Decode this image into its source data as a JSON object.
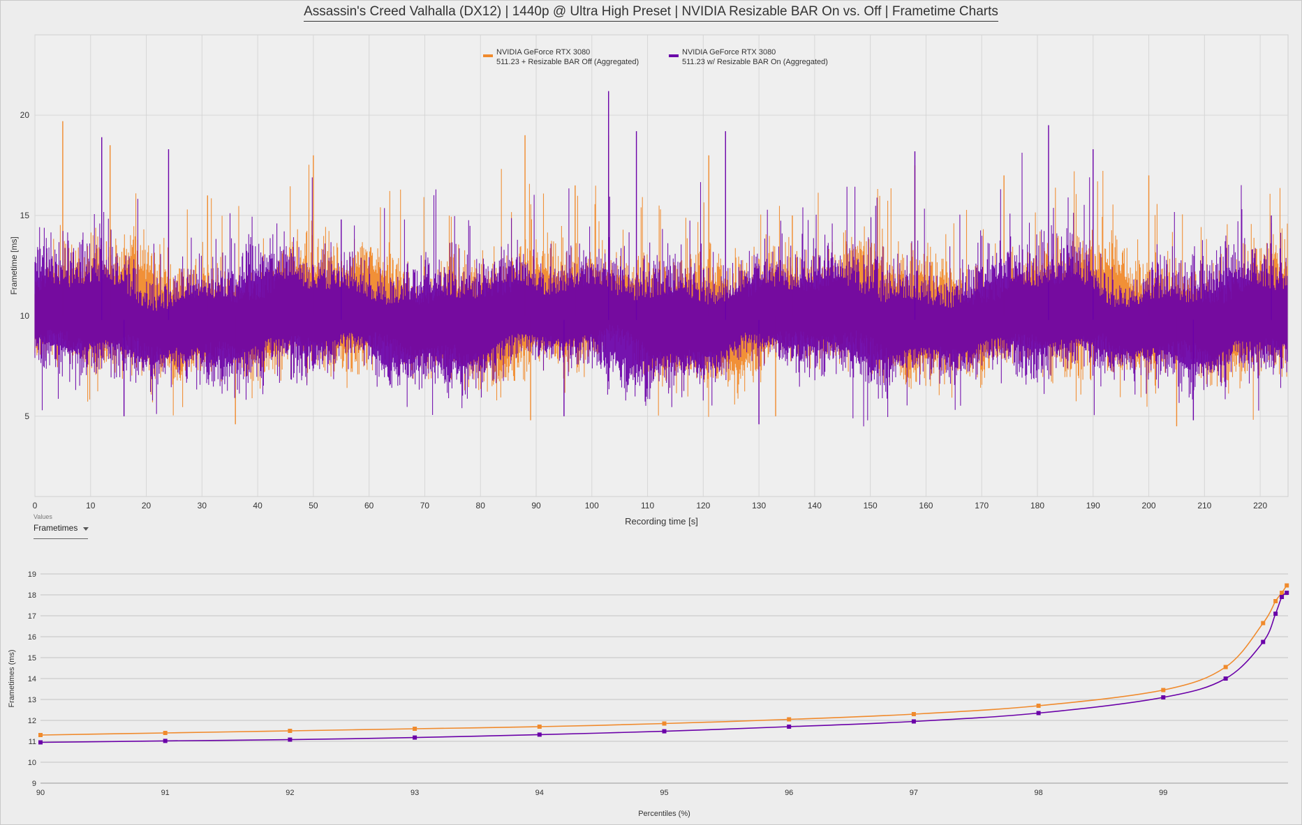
{
  "title": "Assassin's Creed Valhalla (DX12) | 1440p @ Ultra High Preset | NVIDIA Resizable BAR On vs. Off | Frametime Charts",
  "colors": {
    "off": "#f08a2c",
    "on": "#6a00a8",
    "grid": "#d6d6d6",
    "background": "#ededed"
  },
  "legend": [
    {
      "line1": "NVIDIA GeForce RTX 3080",
      "line2": "511.23 + Resizable BAR Off (Aggregated)",
      "color": "#f08a2c"
    },
    {
      "line1": "NVIDIA GeForce RTX 3080",
      "line2": "511.23 w/ Resizable BAR On (Aggregated)",
      "color": "#6a00a8"
    }
  ],
  "values_selector": {
    "label": "Values",
    "selected": "Frametimes"
  },
  "chart_data": [
    {
      "type": "line",
      "title": "",
      "xlabel": "Recording time [s]",
      "ylabel": "Frametime [ms]",
      "xlim": [
        0,
        225
      ],
      "ylim": [
        1,
        24
      ],
      "x_ticks": [
        0,
        10,
        20,
        30,
        40,
        50,
        60,
        70,
        80,
        90,
        100,
        110,
        120,
        130,
        140,
        150,
        160,
        170,
        180,
        190,
        200,
        210,
        220
      ],
      "y_ticks": [
        5,
        10,
        15,
        20
      ],
      "grid": true,
      "legend_position": "top-center",
      "series": [
        {
          "name": "NVIDIA GeForce RTX 3080 511.23 + Resizable BAR Off (Aggregated)",
          "color": "#f08a2c",
          "mean_frametime": 10.0,
          "peaks": [
            {
              "x": 5,
              "y": 19.7
            },
            {
              "x": 13.5,
              "y": 18.5
            },
            {
              "x": 31,
              "y": 16
            },
            {
              "x": 50,
              "y": 18
            },
            {
              "x": 88,
              "y": 19
            },
            {
              "x": 97,
              "y": 16.5
            },
            {
              "x": 103,
              "y": 19
            },
            {
              "x": 121,
              "y": 18
            },
            {
              "x": 136,
              "y": 15
            },
            {
              "x": 158,
              "y": 17.5
            },
            {
              "x": 174,
              "y": 17
            },
            {
              "x": 200,
              "y": 17
            }
          ],
          "troughs": [
            {
              "x": 36,
              "y": 4.6
            },
            {
              "x": 89,
              "y": 4.8
            },
            {
              "x": 133,
              "y": 5
            },
            {
              "x": 205,
              "y": 4.5
            }
          ]
        },
        {
          "name": "NVIDIA GeForce RTX 3080 511.23 w/ Resizable BAR On (Aggregated)",
          "color": "#6a00a8",
          "mean_frametime": 9.8,
          "peaks": [
            {
              "x": 12,
              "y": 18.9
            },
            {
              "x": 24,
              "y": 18.3
            },
            {
              "x": 55,
              "y": 14.8
            },
            {
              "x": 103,
              "y": 21.2
            },
            {
              "x": 108,
              "y": 19.2
            },
            {
              "x": 124,
              "y": 19.2
            },
            {
              "x": 158,
              "y": 18.2
            },
            {
              "x": 182,
              "y": 19.5
            },
            {
              "x": 190,
              "y": 18.3
            },
            {
              "x": 222,
              "y": 15
            }
          ],
          "troughs": [
            {
              "x": 16,
              "y": 5
            },
            {
              "x": 95,
              "y": 5
            },
            {
              "x": 130,
              "y": 4.6
            },
            {
              "x": 208,
              "y": 4.8
            }
          ]
        }
      ]
    },
    {
      "type": "line",
      "title": "",
      "xlabel": "Percentiles (%)",
      "ylabel": "Frametimes (ms)",
      "xlim": [
        90,
        100
      ],
      "ylim": [
        9,
        19
      ],
      "x_ticks": [
        90,
        91,
        92,
        93,
        94,
        95,
        96,
        97,
        98,
        99
      ],
      "y_ticks": [
        9,
        10,
        11,
        12,
        13,
        14,
        15,
        16,
        17,
        18,
        19
      ],
      "grid": true,
      "series": [
        {
          "name": "NVIDIA GeForce RTX 3080 511.23 + Resizable BAR Off (Aggregated)",
          "color": "#f08a2c",
          "x": [
            90,
            91,
            92,
            93,
            94,
            95,
            96,
            97,
            98,
            99,
            99.5,
            99.8,
            99.9,
            99.95,
            99.99
          ],
          "values": [
            11.3,
            11.4,
            11.5,
            11.6,
            11.7,
            11.85,
            12.05,
            12.3,
            12.7,
            13.45,
            14.55,
            16.65,
            17.7,
            18.1,
            18.45
          ]
        },
        {
          "name": "NVIDIA GeForce RTX 3080 511.23 w/ Resizable BAR On (Aggregated)",
          "color": "#6a00a8",
          "x": [
            90,
            91,
            92,
            93,
            94,
            95,
            96,
            97,
            98,
            99,
            99.5,
            99.8,
            99.9,
            99.95,
            99.99
          ],
          "values": [
            10.95,
            11.02,
            11.08,
            11.18,
            11.32,
            11.48,
            11.7,
            11.95,
            12.35,
            13.1,
            14,
            15.75,
            17.1,
            17.9,
            18.1
          ]
        }
      ]
    }
  ]
}
